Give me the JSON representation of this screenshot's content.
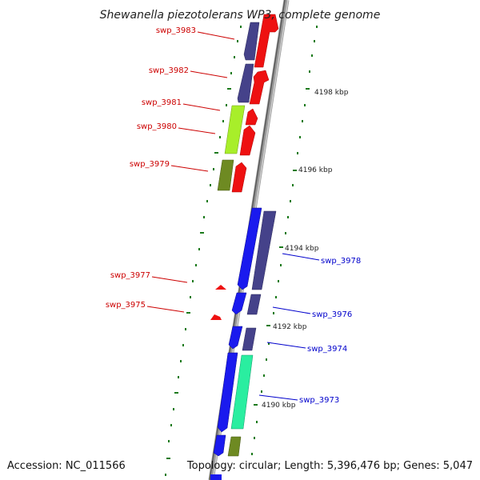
{
  "title": "Shewanella piezotolerans WP3, complete genome",
  "accession": "Accession: NC_011566",
  "topology": "Topology: circular; Length: 5,396,476 bp; Genes: 5,047",
  "scale_labels": [
    "4198 kbp",
    "4196 kbp",
    "4194 kbp",
    "4192 kbp",
    "4190 kbp"
  ],
  "gene_labels_left": [
    "swp_3983",
    "swp_3982",
    "swp_3981",
    "swp_3980",
    "swp_3979",
    "swp_3977",
    "swp_3975"
  ],
  "gene_labels_right": [
    "swp_3978",
    "swp_3976",
    "swp_3974",
    "swp_3973"
  ],
  "colors": {
    "backbone": "#8a8a8a",
    "label_left": "#cc0000",
    "label_right": "#0000cc",
    "tick": "#1b7a1b",
    "cds_red": "#ee1111",
    "cds_blue": "#1a1aee",
    "cds_slate": "#45428a",
    "cds_lime": "#a8ee2a",
    "cds_olive": "#6e8a22",
    "cds_teal": "#2aeea0"
  }
}
